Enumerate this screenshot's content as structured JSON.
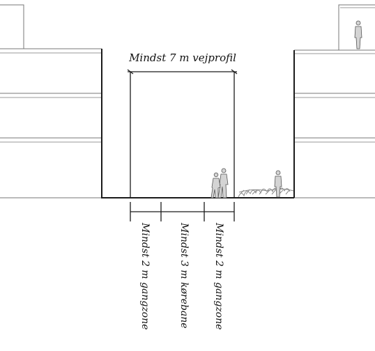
{
  "labels": {
    "width": "Mindst 7 m vejprofil",
    "left_zone": "Mindst 2 m gangzone",
    "middle_zone": "Mindst 3 m kørebane",
    "right_zone": "Mindst 2 m gangzone"
  },
  "colors": {
    "line": "#1a1a1a",
    "thin_line": "#777777",
    "figure": "#cfcfcf",
    "plant": "#9a9a9a"
  },
  "icons": [
    "person-icon",
    "couple-icon",
    "shrub-icon"
  ]
}
